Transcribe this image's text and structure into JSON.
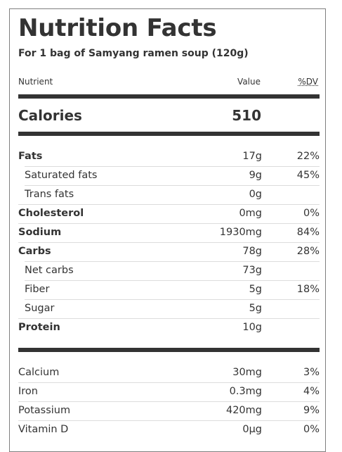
{
  "title": "Nutrition Facts",
  "subtitle": "For 1 bag of Samyang ramen soup (120g)",
  "headers": {
    "nutrient": "Nutrient",
    "value": "Value",
    "dv": "%DV"
  },
  "calories": {
    "label": "Calories",
    "value": "510"
  },
  "macros": [
    {
      "name": "Fats",
      "value": "17g",
      "dv": "22%",
      "bold": true,
      "indent": false
    },
    {
      "name": "Saturated fats",
      "value": "9g",
      "dv": "45%",
      "bold": false,
      "indent": true
    },
    {
      "name": "Trans fats",
      "value": "0g",
      "dv": "",
      "bold": false,
      "indent": true
    },
    {
      "name": "Cholesterol",
      "value": "0mg",
      "dv": "0%",
      "bold": true,
      "indent": false
    },
    {
      "name": "Sodium",
      "value": "1930mg",
      "dv": "84%",
      "bold": true,
      "indent": false
    },
    {
      "name": "Carbs",
      "value": "78g",
      "dv": "28%",
      "bold": true,
      "indent": false
    },
    {
      "name": "Net carbs",
      "value": "73g",
      "dv": "",
      "bold": false,
      "indent": true
    },
    {
      "name": "Fiber",
      "value": "5g",
      "dv": "18%",
      "bold": false,
      "indent": true
    },
    {
      "name": "Sugar",
      "value": "5g",
      "dv": "",
      "bold": false,
      "indent": true
    },
    {
      "name": "Protein",
      "value": "10g",
      "dv": "",
      "bold": true,
      "indent": false
    }
  ],
  "micros": [
    {
      "name": "Calcium",
      "value": "30mg",
      "dv": "3%"
    },
    {
      "name": "Iron",
      "value": "0.3mg",
      "dv": "4%"
    },
    {
      "name": "Potassium",
      "value": "420mg",
      "dv": "9%"
    },
    {
      "name": "Vitamin D",
      "value": "0μg",
      "dv": "0%"
    }
  ]
}
